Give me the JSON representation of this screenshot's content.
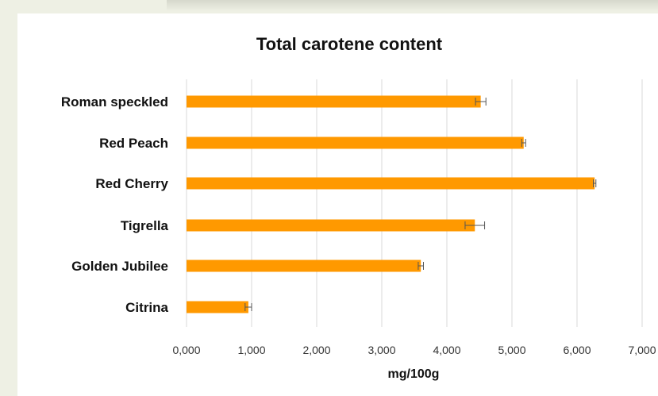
{
  "chart_data": {
    "type": "bar",
    "orientation": "horizontal",
    "title": "Total carotene content",
    "xlabel": "mg/100g",
    "ylabel": "",
    "categories": [
      "Roman speckled",
      "Red Peach",
      "Red Cherry",
      "Tigrella",
      "Golden Jubilee",
      "Citrina"
    ],
    "values": [
      4520,
      5180,
      6270,
      4430,
      3600,
      950
    ],
    "errors": [
      80,
      30,
      20,
      150,
      40,
      50
    ],
    "xlim": [
      0,
      7000
    ],
    "ticks": [
      "0,000",
      "1,000",
      "2,000",
      "3,000",
      "4,000",
      "5,000",
      "6,000",
      "7,000"
    ],
    "bar_color": "#ff9900",
    "grid": "vertical",
    "legend": "none"
  }
}
